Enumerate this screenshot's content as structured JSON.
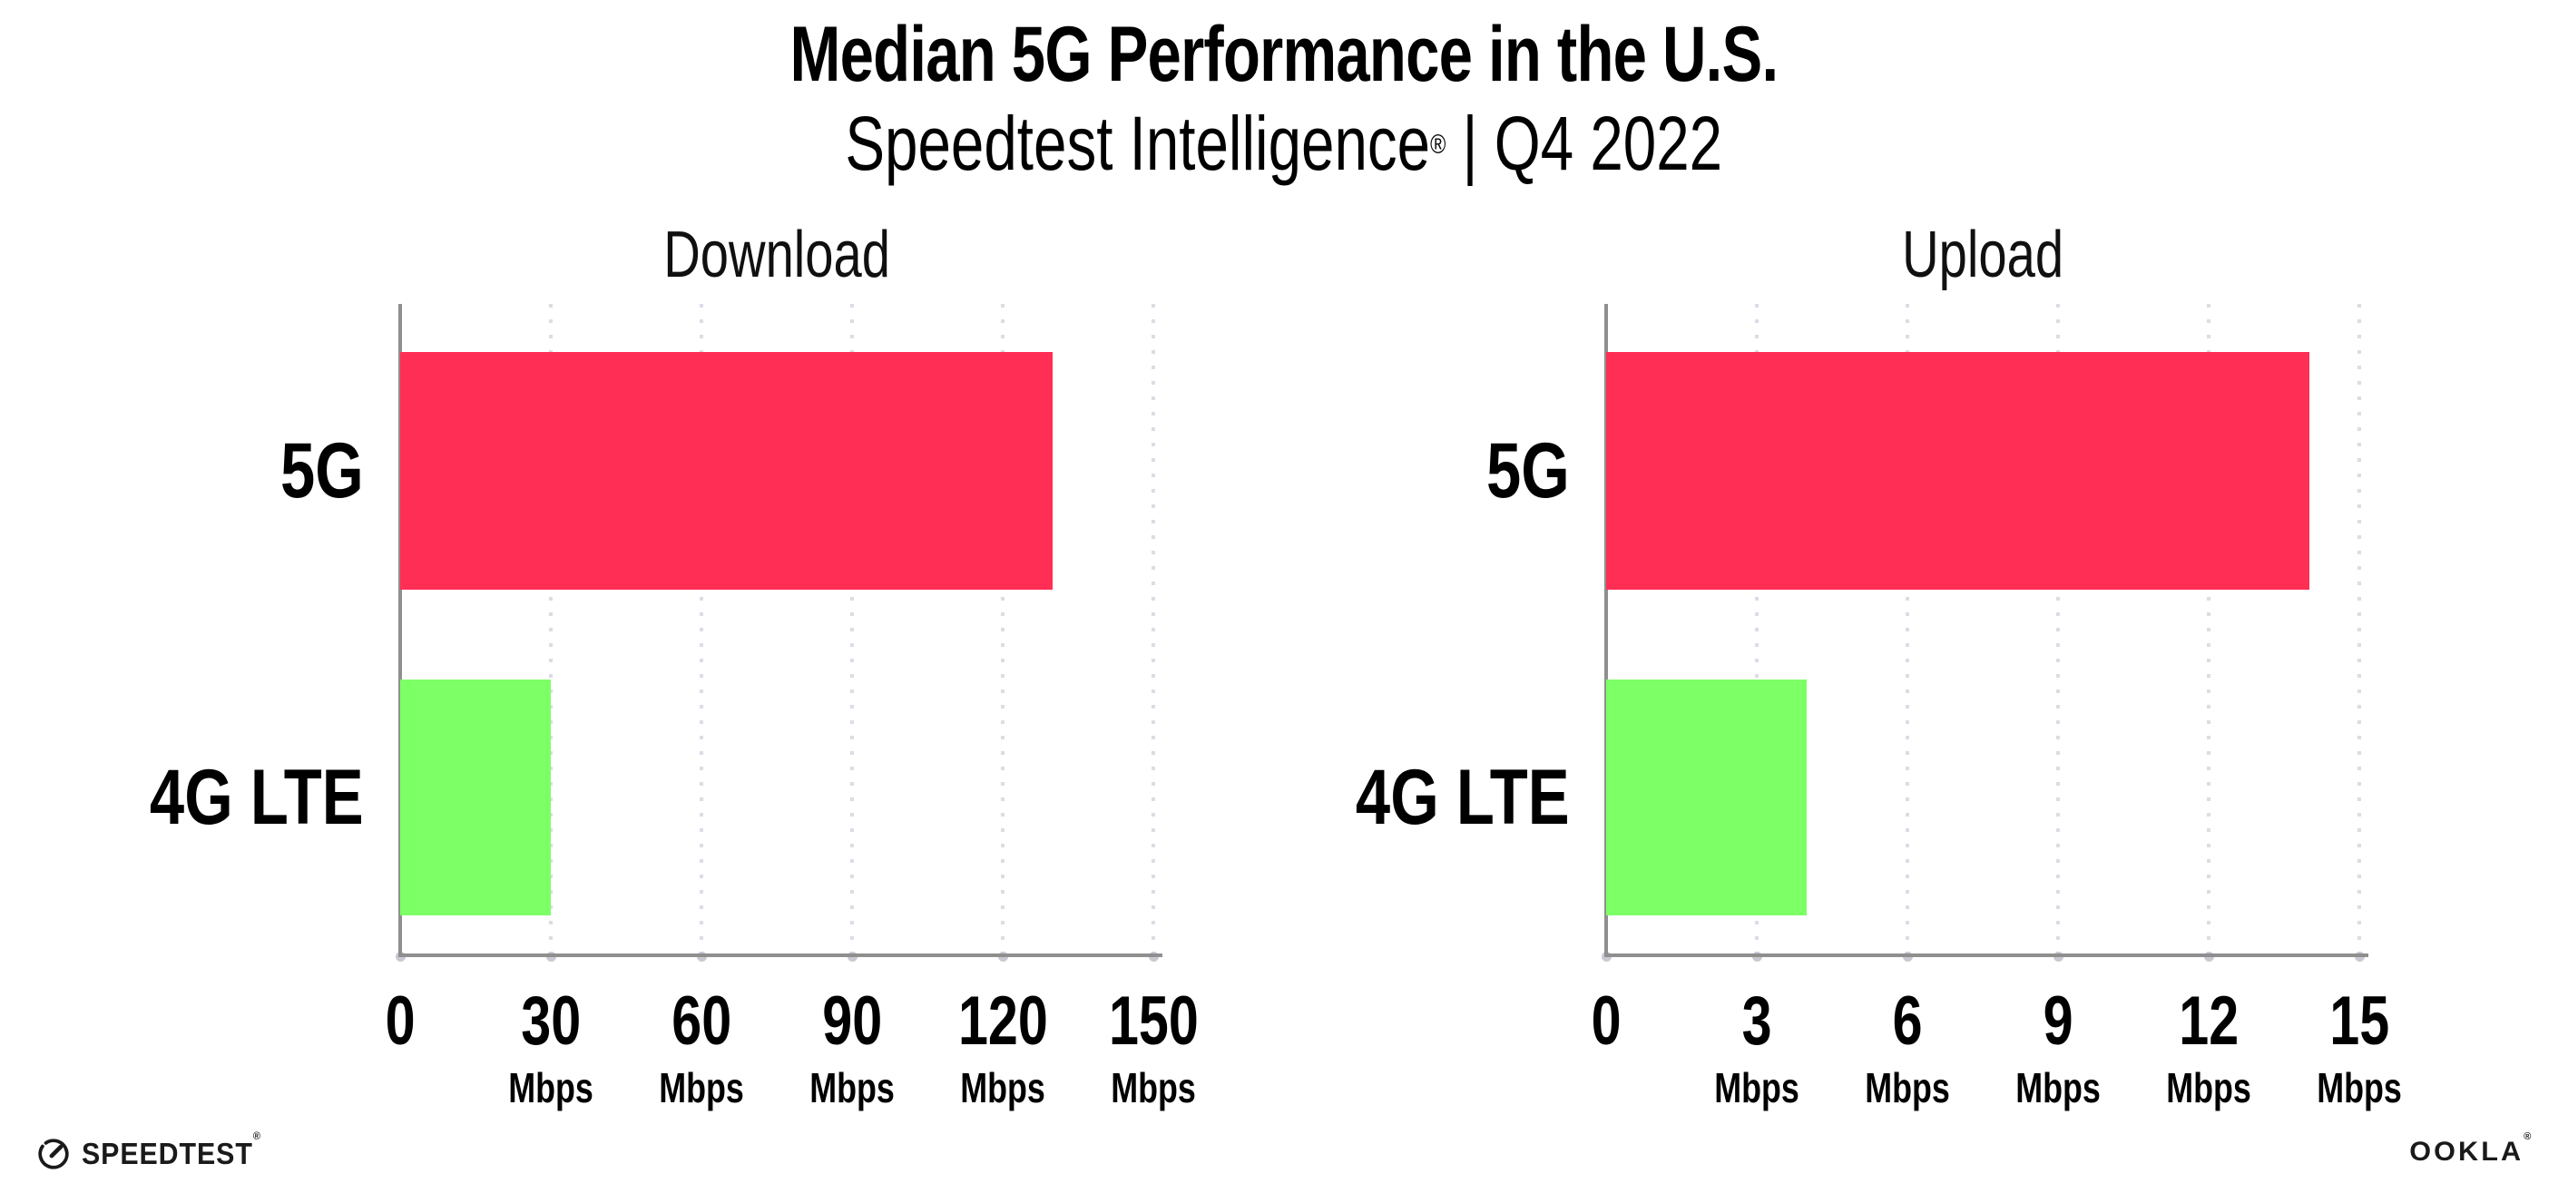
{
  "header": {
    "title": "Median 5G Performance in the U.S.",
    "subtitle": {
      "brand": "Speedtest Intelligence",
      "reg": "®",
      "rest": " | Q4 2022"
    }
  },
  "chart_data": [
    {
      "type": "bar",
      "orientation": "horizontal",
      "title": "Download",
      "categories": [
        "5G",
        "4G LTE"
      ],
      "values": [
        130,
        30
      ],
      "unit": "Mbps",
      "xlim": [
        0,
        150
      ],
      "xticks": [
        0,
        30,
        60,
        90,
        120,
        150
      ],
      "bar_colors": [
        "#FF2E55",
        "#7DFF66"
      ],
      "grid": "dotted-vertical-at-each-tick",
      "legend": "none"
    },
    {
      "type": "bar",
      "orientation": "horizontal",
      "title": "Upload",
      "categories": [
        "5G",
        "4G LTE"
      ],
      "values": [
        14,
        4
      ],
      "unit": "Mbps",
      "xlim": [
        0,
        15
      ],
      "xticks": [
        0,
        3,
        6,
        9,
        12,
        15
      ],
      "bar_colors": [
        "#FF2E55",
        "#7DFF66"
      ],
      "grid": "dotted-vertical-at-each-tick",
      "legend": "none"
    }
  ],
  "footer": {
    "speedtest_label": "SPEEDTEST",
    "speedtest_reg": "®",
    "speedtest_icon": "gauge-icon",
    "ookla_label": "OOKLA",
    "ookla_reg": "®"
  },
  "colors": {
    "bar_5g": "#FF2E55",
    "bar_4g_lte": "#7DFF66",
    "axis": "#8F8F8F",
    "grid_dots": "#DCDCE6",
    "text": "#000000",
    "logo": "#1A1A1A"
  }
}
